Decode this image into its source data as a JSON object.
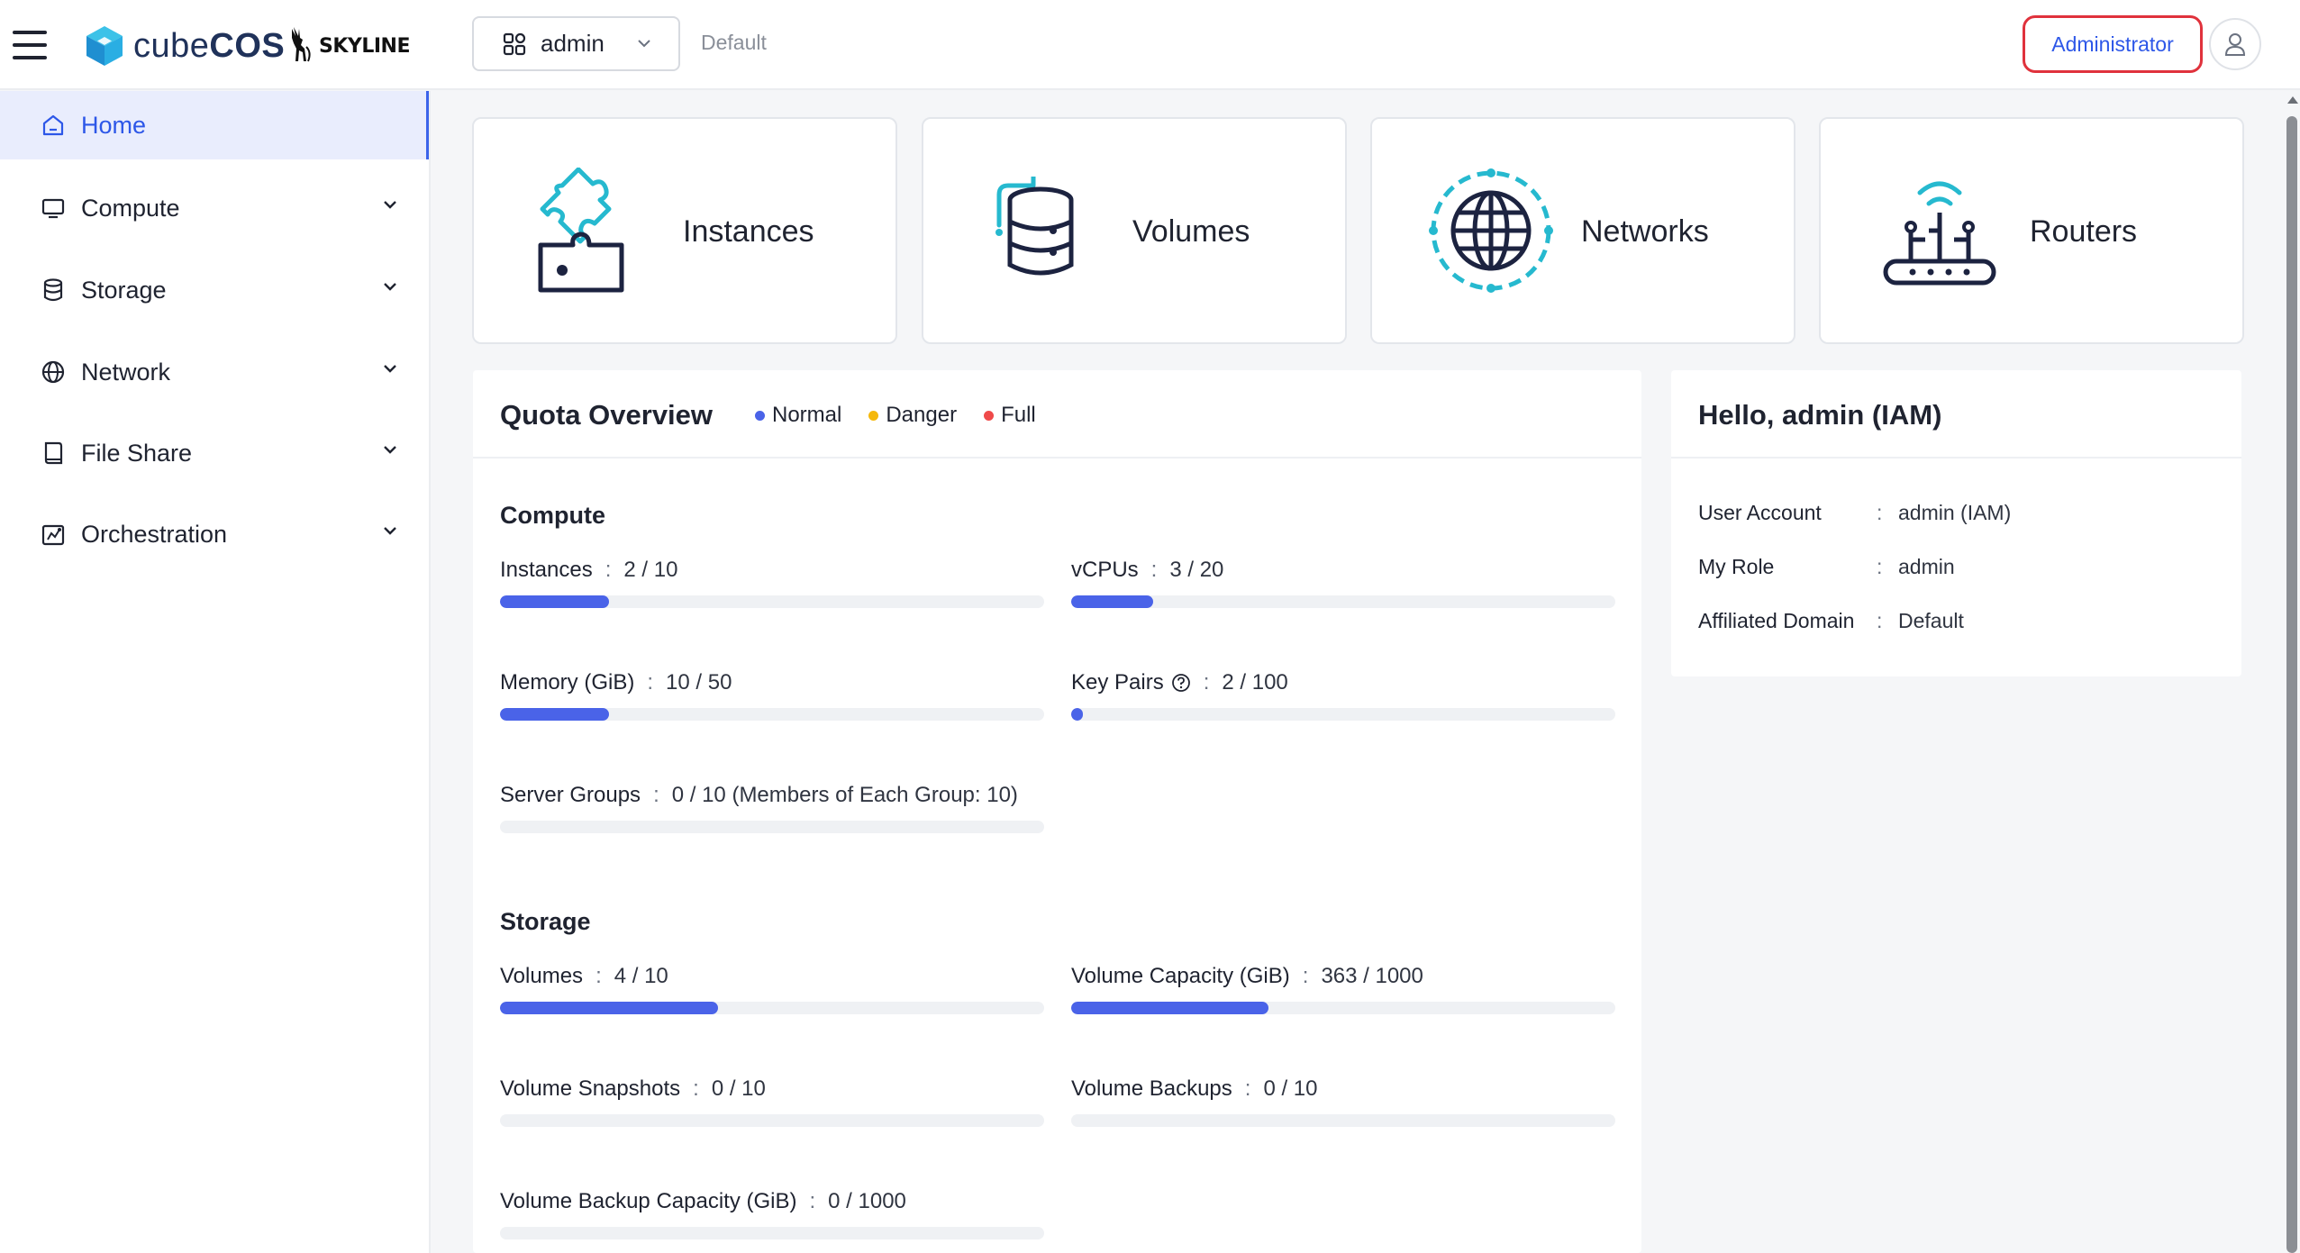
{
  "header": {
    "logo_text_light": "cube",
    "logo_text_bold": "COS",
    "partner_logo_text": "SKYLINE",
    "project": "admin",
    "domain": "Default",
    "role_button": "Administrator"
  },
  "sidebar": {
    "items": [
      {
        "label": "Home",
        "icon": "home-icon",
        "active": true
      },
      {
        "label": "Compute",
        "icon": "monitor-icon"
      },
      {
        "label": "Storage",
        "icon": "database-icon"
      },
      {
        "label": "Network",
        "icon": "globe-icon"
      },
      {
        "label": "File Share",
        "icon": "file-share-icon"
      },
      {
        "label": "Orchestration",
        "icon": "orchestration-icon"
      }
    ]
  },
  "cards": [
    {
      "label": "Instances",
      "icon": "puzzle-icon"
    },
    {
      "label": "Volumes",
      "icon": "database-stack-icon"
    },
    {
      "label": "Networks",
      "icon": "globe-network-icon"
    },
    {
      "label": "Routers",
      "icon": "router-icon"
    }
  ],
  "quota": {
    "title": "Quota Overview",
    "legend": [
      {
        "label": "Normal",
        "color": "#4a63e8"
      },
      {
        "label": "Danger",
        "color": "#f5b80b"
      },
      {
        "label": "Full",
        "color": "#ef4a4a"
      }
    ],
    "compute": {
      "title": "Compute",
      "items": [
        {
          "label": "Instances",
          "value": "2 / 10",
          "fraction": 0.2
        },
        {
          "label": "vCPUs",
          "value": "3 / 20",
          "fraction": 0.15
        },
        {
          "label": "Memory (GiB)",
          "value": "10 / 50",
          "fraction": 0.2
        },
        {
          "label": "Key Pairs",
          "value": "2 / 100",
          "fraction": 0.02
        },
        {
          "label": "Server Groups",
          "value": "0 / 10 (Members of Each Group: 10)",
          "fraction": 0
        }
      ]
    },
    "storage": {
      "title": "Storage",
      "items": [
        {
          "label": "Volumes",
          "value": "4 / 10",
          "fraction": 0.4
        },
        {
          "label": "Volume Capacity (GiB)",
          "value": "363 / 1000",
          "fraction": 0.363
        },
        {
          "label": "Volume Snapshots",
          "value": "0 / 10",
          "fraction": 0
        },
        {
          "label": "Volume Backups",
          "value": "0 / 10",
          "fraction": 0
        },
        {
          "label": "Volume Backup Capacity (GiB)",
          "value": "0 / 1000",
          "fraction": 0
        }
      ]
    },
    "separator": ":"
  },
  "hello": {
    "title": "Hello, admin (IAM)",
    "rows": [
      {
        "key": "User Account",
        "value": "admin (IAM)"
      },
      {
        "key": "My Role",
        "value": "admin"
      },
      {
        "key": "Affiliated Domain",
        "value": "Default"
      }
    ]
  }
}
